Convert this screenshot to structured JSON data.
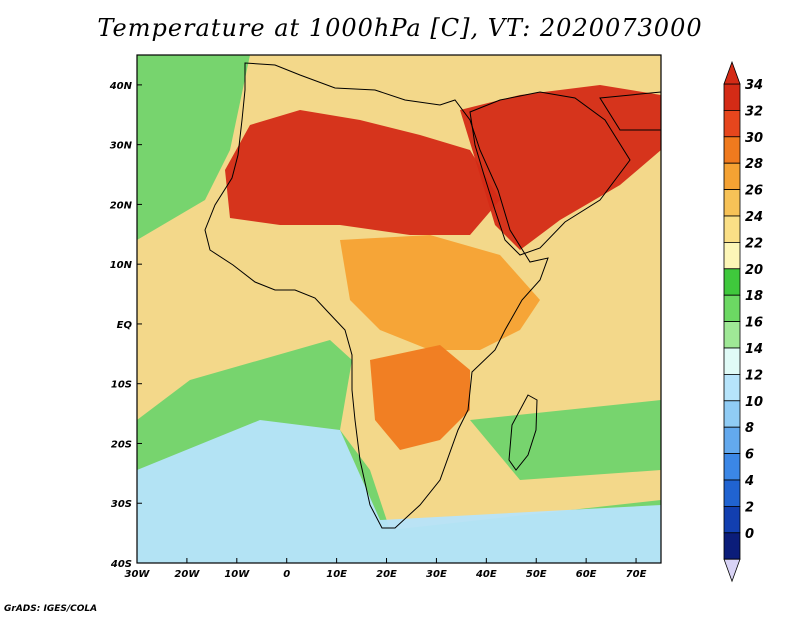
{
  "title": "Temperature at 1000hPa [C], VT: 2020073000",
  "credit": "GrADS: IGES/COLA",
  "map": {
    "lon_range": [
      -30,
      75
    ],
    "lat_range": [
      -40,
      45
    ],
    "lon_ticks": [
      "30W",
      "20W",
      "10W",
      "0",
      "10E",
      "20E",
      "30E",
      "40E",
      "50E",
      "60E",
      "70E"
    ],
    "lat_ticks": [
      "40N",
      "30N",
      "20N",
      "10N",
      "EQ",
      "10S",
      "20S",
      "30S",
      "40S"
    ],
    "background_color": "#f3d88a"
  },
  "colorbar": {
    "labels": [
      "34",
      "32",
      "30",
      "28",
      "26",
      "24",
      "22",
      "20",
      "18",
      "16",
      "14",
      "12",
      "10",
      "8",
      "6",
      "4",
      "2",
      "0"
    ],
    "colors": [
      "#d42b16",
      "#e6461d",
      "#f07a1e",
      "#f5a233",
      "#f7c257",
      "#fadf86",
      "#fdf6b7",
      "#3fc83c",
      "#6cd963",
      "#9fe896",
      "#e0fbf7",
      "#b6e4fb",
      "#90ccf5",
      "#63a9ee",
      "#3b87e6",
      "#2063d1",
      "#123fb0",
      "#0b1d7a"
    ],
    "top_arrow_color": "#d42b16",
    "bottom_arrow_color": "#d8d3f5"
  },
  "regions": [
    {
      "name": "ocean-cool",
      "color": "#70d46d"
    },
    {
      "name": "sahara-hot",
      "color": "#d42b16"
    },
    {
      "name": "arabia-hot",
      "color": "#d42b16"
    },
    {
      "name": "central-africa",
      "color": "#f5a233"
    },
    {
      "name": "southern-africa",
      "color": "#f07a1e"
    },
    {
      "name": "south-atlantic-cold",
      "color": "#b6e4fb"
    }
  ]
}
